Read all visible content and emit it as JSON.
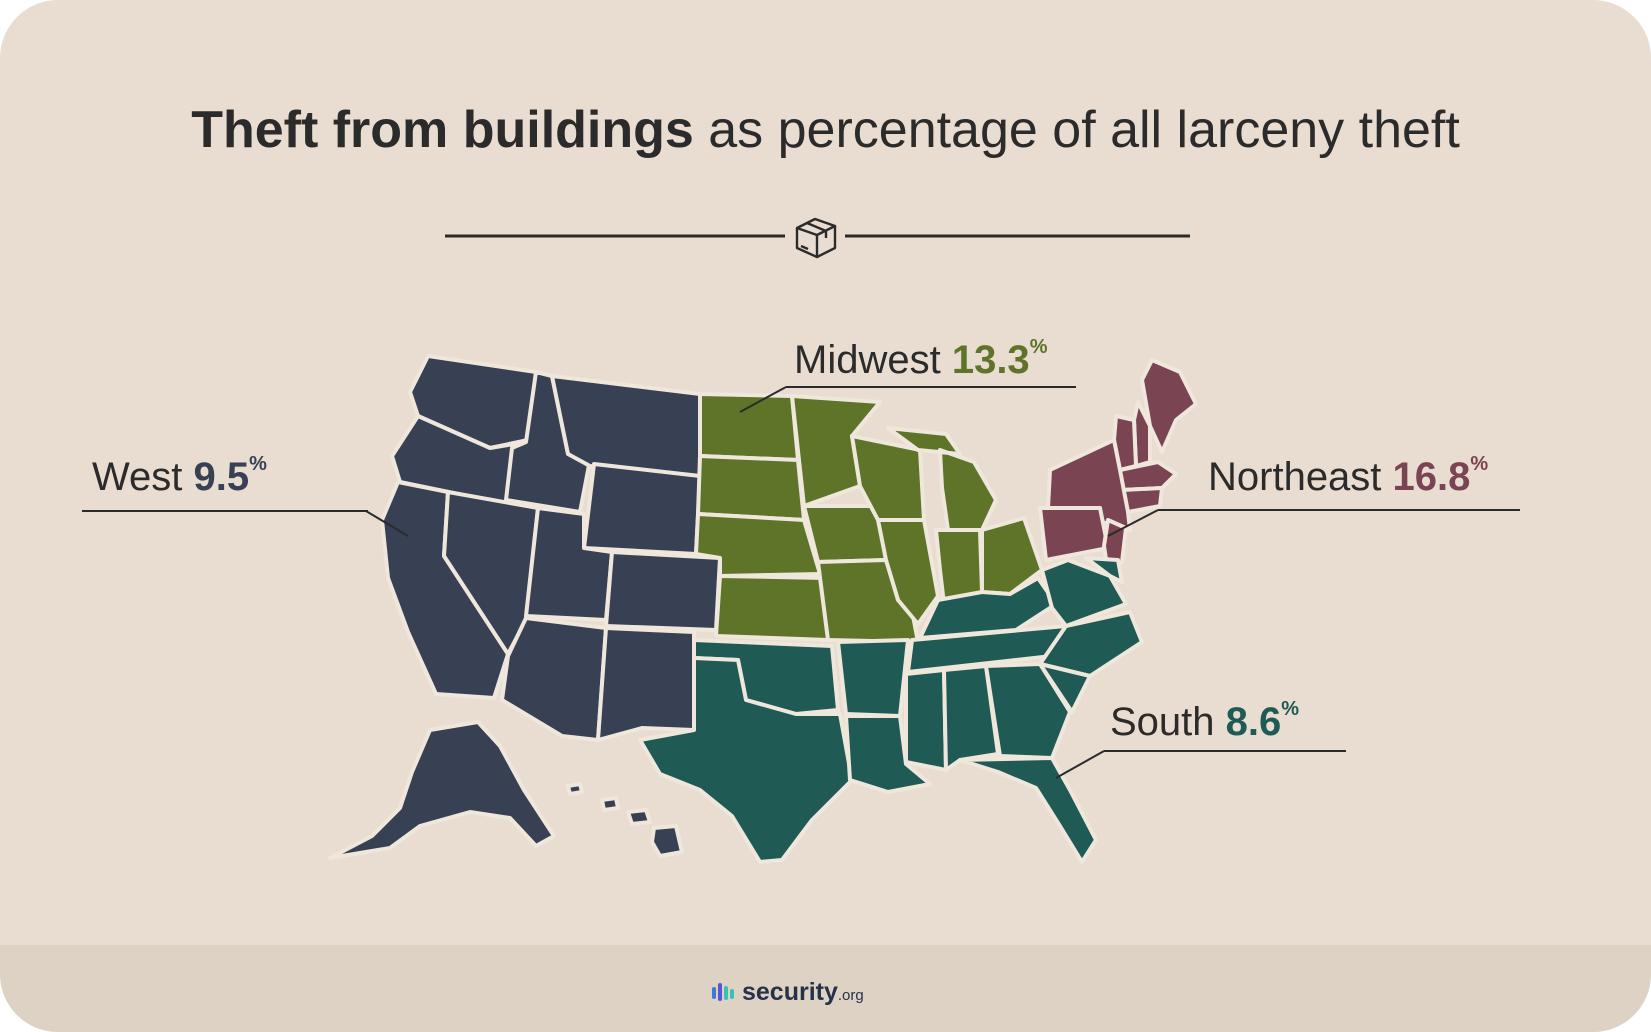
{
  "title": {
    "bold": "Theft from buildings",
    "rest": "as percentage of all larceny theft"
  },
  "divider_icon": "package-box-icon",
  "regions": [
    {
      "id": "west",
      "name": "West",
      "value": "9.5",
      "unit": "%",
      "color": "#384054"
    },
    {
      "id": "midwest",
      "name": "Midwest",
      "value": "13.3",
      "unit": "%",
      "color": "#5e7428"
    },
    {
      "id": "northeast",
      "name": "Northeast",
      "value": "16.8",
      "unit": "%",
      "color": "#7a4452"
    },
    {
      "id": "south",
      "name": "South",
      "value": "8.6",
      "unit": "%",
      "color": "#1f5a54"
    }
  ],
  "footer": {
    "brand": "security",
    "suffix": ".org",
    "logo_icon": "security-org-logo-icon"
  },
  "colors": {
    "background": "#e8ddd0",
    "text": "#2b2b2b",
    "border": "#efe7dc"
  }
}
